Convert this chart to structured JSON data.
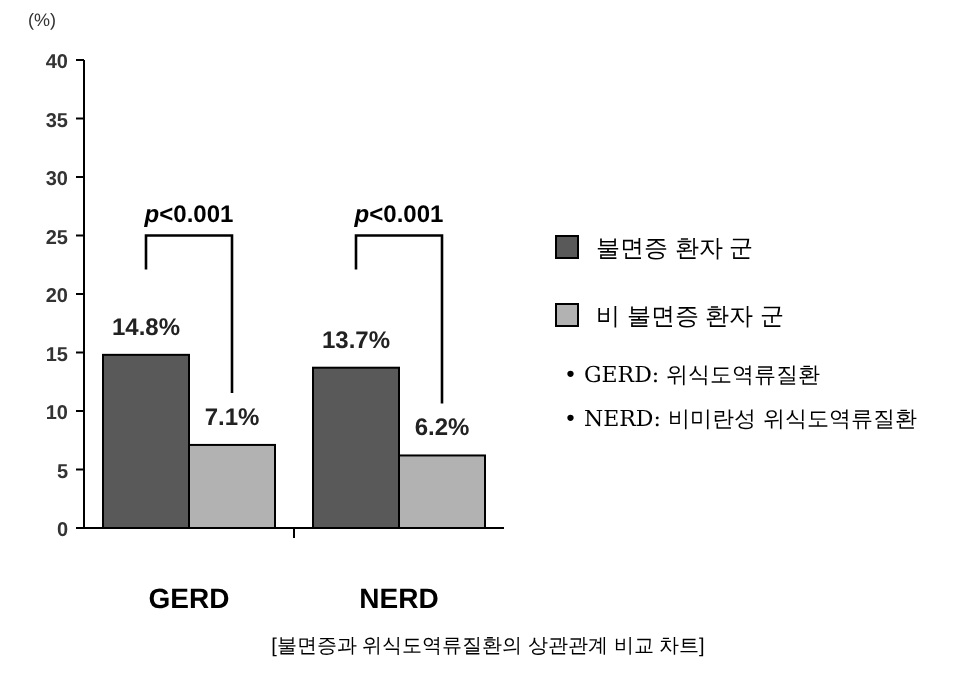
{
  "chart_data": {
    "type": "bar",
    "ylabel": "(%)",
    "categories": [
      "GERD",
      "NERD"
    ],
    "series": [
      {
        "name": "불면증 환자 군",
        "color": "#595959",
        "values": [
          14.8,
          13.7
        ],
        "value_labels": [
          "14.8%",
          "13.7%"
        ]
      },
      {
        "name": "비 불면증 환자 군",
        "color": "#b2b2b2",
        "values": [
          7.1,
          6.2
        ],
        "value_labels": [
          "7.1%",
          "6.2%"
        ]
      }
    ],
    "ylim": [
      0,
      40
    ],
    "yticks": [
      0,
      5,
      10,
      15,
      20,
      25,
      30,
      35,
      40
    ],
    "legend": "right",
    "annotations": [
      "*p*<0.001",
      "*p*<0.001",
      "• GERD: 위식도역류질환",
      "• NERD: 비미란성 위식도역류질환",
      "[불면증과 위식도역류질환의 상관관계 비교 차트]"
    ]
  }
}
